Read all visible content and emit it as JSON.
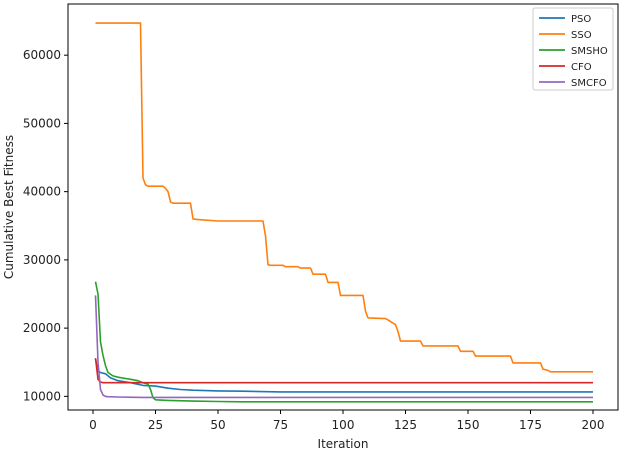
{
  "chart_data": {
    "type": "line",
    "title": "",
    "xlabel": "Iteration",
    "ylabel": "Cumulative Best Fitness",
    "xlim": [
      -10,
      210
    ],
    "ylim": [
      8000,
      67500
    ],
    "xticks": [
      0,
      25,
      50,
      75,
      100,
      125,
      150,
      175,
      200
    ],
    "yticks": [
      10000,
      20000,
      30000,
      40000,
      50000,
      60000
    ],
    "grid": false,
    "legend_position": "top-right",
    "series": [
      {
        "name": "PSO",
        "color": "#1f77b4",
        "x": [
          1,
          2,
          3,
          5,
          7,
          10,
          15,
          20,
          25,
          30,
          35,
          40,
          50,
          60,
          75,
          100,
          125,
          150,
          175,
          200
        ],
        "y": [
          15500,
          13700,
          13500,
          13300,
          12700,
          12300,
          12000,
          11600,
          11500,
          11200,
          11000,
          10900,
          10800,
          10750,
          10650,
          10650,
          10650,
          10650,
          10650,
          10650
        ]
      },
      {
        "name": "SSO",
        "color": "#ff7f0e",
        "x": [
          1,
          19,
          20,
          21,
          22,
          23,
          28,
          29,
          30,
          31,
          32,
          39,
          40,
          42,
          50,
          68,
          69,
          70,
          71,
          76,
          77,
          82,
          83,
          87,
          88,
          93,
          94,
          98,
          99,
          108,
          109,
          110,
          117,
          118,
          121,
          122,
          123,
          131,
          132,
          146,
          147,
          152,
          153,
          167,
          168,
          179,
          180,
          182,
          183,
          200
        ],
        "y": [
          64700,
          64700,
          42000,
          41000,
          40800,
          40800,
          40800,
          40500,
          40000,
          38500,
          38300,
          38300,
          36000,
          35900,
          35700,
          35700,
          33500,
          29300,
          29200,
          29200,
          29000,
          29000,
          28800,
          28800,
          27900,
          27900,
          26700,
          26700,
          24800,
          24800,
          22500,
          21500,
          21400,
          21200,
          20500,
          19500,
          18100,
          18100,
          17400,
          17400,
          16600,
          16600,
          15900,
          15900,
          14900,
          14900,
          14000,
          13800,
          13600,
          13600
        ]
      },
      {
        "name": "SMSHO",
        "color": "#2ca02c",
        "x": [
          1,
          2,
          3,
          4,
          5,
          6,
          8,
          10,
          15,
          18,
          20,
          22,
          23,
          24,
          25,
          30,
          40,
          50,
          60,
          100,
          150,
          200
        ],
        "y": [
          26800,
          25000,
          18000,
          16000,
          14500,
          13500,
          13000,
          12800,
          12500,
          12300,
          12000,
          11800,
          11000,
          9800,
          9500,
          9400,
          9300,
          9250,
          9200,
          9200,
          9200,
          9200
        ]
      },
      {
        "name": "CFO",
        "color": "#d62728",
        "x": [
          1,
          2,
          3,
          4,
          200
        ],
        "y": [
          15600,
          12500,
          12100,
          12000,
          12000
        ]
      },
      {
        "name": "SMCFO",
        "color": "#9467bd",
        "x": [
          1,
          2,
          3,
          4,
          5,
          6,
          10,
          20,
          200
        ],
        "y": [
          24800,
          15000,
          11000,
          10200,
          10000,
          9950,
          9900,
          9850,
          9850
        ]
      }
    ]
  }
}
